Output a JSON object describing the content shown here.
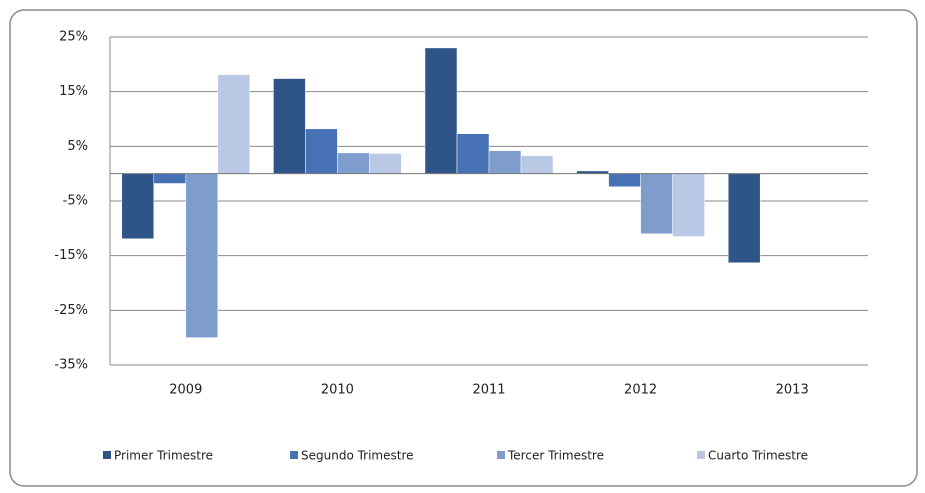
{
  "chart_data": {
    "type": "bar",
    "categories": [
      "2009",
      "2010",
      "2011",
      "2012",
      "2013"
    ],
    "series": [
      {
        "name": "Primer Trimestre",
        "color": "#2f5487",
        "values": [
          -11.9,
          17.4,
          23,
          0.5,
          -16.3
        ]
      },
      {
        "name": "Segundo Trimestre",
        "color": "#4672b5",
        "values": [
          -1.8,
          8.2,
          7.3,
          -2.4,
          null
        ]
      },
      {
        "name": "Tercer Trimestre",
        "color": "#7e9dcd",
        "values": [
          -30,
          3.8,
          4.2,
          -11,
          null
        ]
      },
      {
        "name": "Cuarto Trimestre",
        "color": "#b8c8e5",
        "values": [
          18.1,
          3.7,
          3.3,
          -11.5,
          null
        ]
      }
    ],
    "ylim": [
      -35,
      25
    ],
    "yticks": [
      {
        "value": -35,
        "label": "-35%"
      },
      {
        "value": -25,
        "label": "-25%"
      },
      {
        "value": -15,
        "label": "-15%"
      },
      {
        "value": -5,
        "label": "-5%"
      },
      {
        "value": 5,
        "label": "5%"
      },
      {
        "value": 15,
        "label": "15%"
      },
      {
        "value": 25,
        "label": "25%"
      }
    ],
    "grid": true,
    "legend": "bottom"
  }
}
